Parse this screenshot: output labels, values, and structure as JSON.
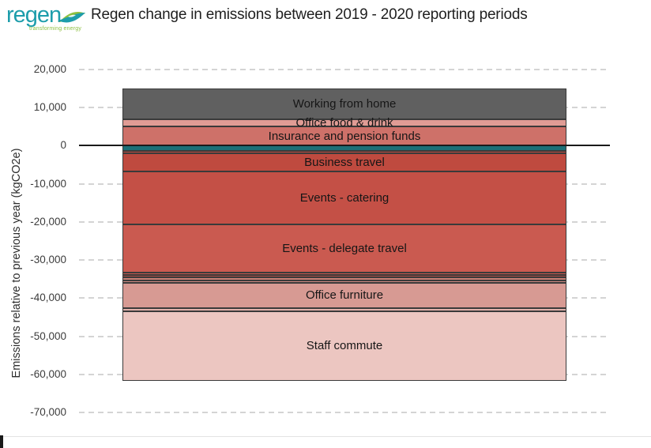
{
  "logo": {
    "wordmark": "regen",
    "tagline": "transforming energy",
    "teal": "#1D9DAB",
    "green": "#8CBF3F"
  },
  "header": {
    "title": "Regen change in emissions between 2019 - 2020 reporting periods"
  },
  "chart_data": {
    "type": "bar",
    "subtype": "single-stacked-column-diverging",
    "title": "Regen change in emissions between 2019 - 2020 reporting periods",
    "xlabel": "",
    "ylabel": "Emissions relative to previous year (kgCO2e)",
    "units": "kgCO2e",
    "ylim": [
      -70000,
      20000
    ],
    "grid": "horizontal-dashed",
    "zero_line": true,
    "legend": "none",
    "yticks": [
      {
        "label": "20,000",
        "value": 20000
      },
      {
        "label": "10,000",
        "value": 10000
      },
      {
        "label": "0",
        "value": 0
      },
      {
        "label": "-10,000",
        "value": -10000
      },
      {
        "label": "-20,000",
        "value": -20000
      },
      {
        "label": "-30,000",
        "value": -30000
      },
      {
        "label": "-40,000",
        "value": -40000
      },
      {
        "label": "-50,000",
        "value": -50000
      },
      {
        "label": "-60,000",
        "value": -60000
      },
      {
        "label": "-70,000",
        "value": -70000
      }
    ],
    "total_increase": 15000,
    "total_decrease": -61650,
    "segments": [
      {
        "label": "Working from home",
        "value": 8000,
        "color": "#606060"
      },
      {
        "label": "Office food & drink",
        "value": 2000,
        "color": "#E09C95"
      },
      {
        "label": "Insurance and pension funds",
        "value": 5000,
        "color": "#CE7169"
      },
      {
        "label": "",
        "value": -1400,
        "color": "#1C6F77"
      },
      {
        "label": "",
        "value": -600,
        "color": "#BF4A3F"
      },
      {
        "label": "Business travel",
        "value": -4800,
        "color": "#BF4A3F"
      },
      {
        "label": "Events - catering",
        "value": -13800,
        "color": "#C45046"
      },
      {
        "label": "Events - delegate travel",
        "value": -12600,
        "color": "#CA5A50"
      },
      {
        "label": "",
        "value": -700,
        "color": "#C9594F"
      },
      {
        "label": "",
        "value": -700,
        "color": "#A84A42"
      },
      {
        "label": "",
        "value": -700,
        "color": "#C97F76"
      },
      {
        "label": "",
        "value": -650,
        "color": "#D08A82"
      },
      {
        "label": "Office furniture",
        "value": -6600,
        "color": "#D79A93"
      },
      {
        "label": "",
        "value": -900,
        "color": "#E2B1AB"
      },
      {
        "label": "Staff commute",
        "value": -18200,
        "color": "#ECC6C1"
      }
    ]
  },
  "axis_style": {
    "grid_color": "#D4D4D4",
    "zero_line_color": "#1A1A1A",
    "segment_border_color": "#3A3A3A",
    "tick_text_color": "#3C3C3C",
    "segment_label_color": "#161616"
  }
}
